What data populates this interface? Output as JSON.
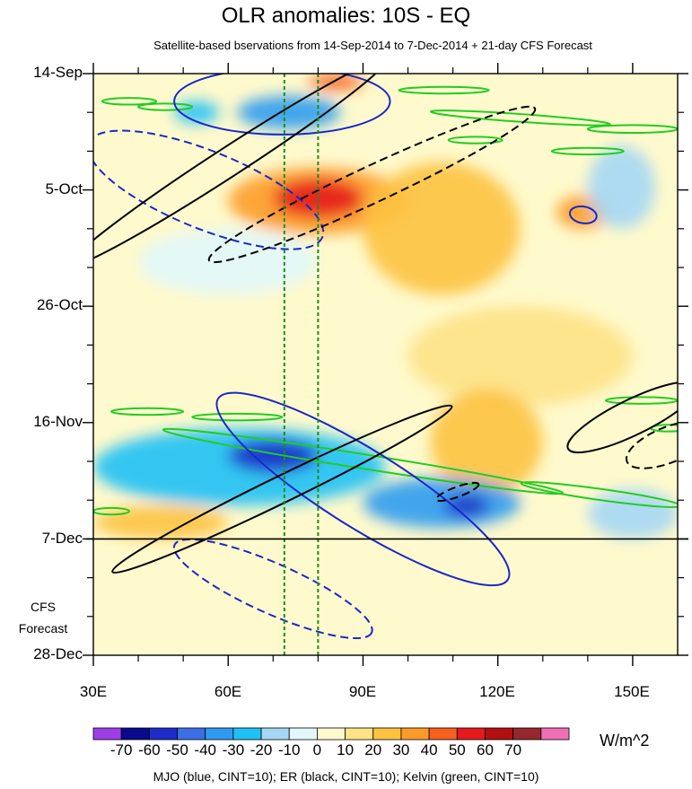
{
  "chart_data": {
    "type": "heatmap",
    "title": "OLR anomalies: 10S - EQ",
    "subtitle": "Satellite-based bservations from 14-Sep-2014 to 7-Dec-2014 + 21-day CFS Forecast",
    "x_ticks": [
      "30E",
      "60E",
      "90E",
      "120E",
      "150E"
    ],
    "x_tick_values": [
      30,
      60,
      90,
      120,
      150
    ],
    "xlim": [
      30,
      160
    ],
    "y_ticks": [
      "14-Sep",
      "5-Oct",
      "26-Oct",
      "16-Nov",
      "7-Dec",
      "28-Dec"
    ],
    "y_tick_days": [
      0,
      21,
      42,
      63,
      84,
      105
    ],
    "ylim_days": [
      0,
      105
    ],
    "observation_end_day": 84,
    "forecast_label": [
      "CFS",
      "Forecast"
    ],
    "colorbar": {
      "labels": [
        "-70",
        "-60",
        "-50",
        "-40",
        "-30",
        "-20",
        "-10",
        "0",
        "10",
        "20",
        "30",
        "40",
        "50",
        "60",
        "70"
      ],
      "colors": [
        "#9e3de6",
        "#0a0a8c",
        "#1e2dc8",
        "#3c6ee6",
        "#2e9bf0",
        "#1fc0f5",
        "#a5d7f5",
        "#e1f7fa",
        "#fffacd",
        "#fde286",
        "#fdc240",
        "#fd9b2a",
        "#f5611e",
        "#e61a1a",
        "#b40f0f",
        "#96282d",
        "#f06eb4"
      ],
      "units": "W/m^2"
    },
    "overlay_note": "MJO (blue, CINT=10); ER (black, CINT=10); Kelvin (green, CINT=10)",
    "overlay_colors": {
      "MJO": "#1a28c8",
      "ER": "#000000",
      "Kelvin": "#22cc22",
      "reference_lines": "#1e8c1e"
    },
    "reference_longitudes": [
      72.5,
      80
    ],
    "anomaly_regions": [
      {
        "lon": [
          62,
          85
        ],
        "day": [
          4,
          10
        ],
        "value": -40
      },
      {
        "lon": [
          48,
          58
        ],
        "day": [
          5,
          9
        ],
        "value": -30
      },
      {
        "lon": [
          60,
          100
        ],
        "day": [
          17,
          29
        ],
        "value": 30
      },
      {
        "lon": [
          70,
          90
        ],
        "day": [
          19,
          26
        ],
        "value": 50
      },
      {
        "lon": [
          78,
          90
        ],
        "day": [
          0,
          3
        ],
        "value": 40
      },
      {
        "lon": [
          90,
          125
        ],
        "day": [
          16,
          40
        ],
        "value": 20
      },
      {
        "lon": [
          133,
          145
        ],
        "day": [
          22,
          28
        ],
        "value": 30
      },
      {
        "lon": [
          140,
          155
        ],
        "day": [
          13,
          28
        ],
        "value": -20
      },
      {
        "lon": [
          40,
          80
        ],
        "day": [
          28,
          40
        ],
        "value": -10
      },
      {
        "lon": [
          100,
          150
        ],
        "day": [
          42,
          60
        ],
        "value": 10
      },
      {
        "lon": [
          105,
          130
        ],
        "day": [
          57,
          76
        ],
        "value": 20
      },
      {
        "lon": [
          30,
          95
        ],
        "day": [
          64,
          78
        ],
        "value": -30
      },
      {
        "lon": [
          60,
          80
        ],
        "day": [
          66,
          72
        ],
        "value": -60
      },
      {
        "lon": [
          90,
          125
        ],
        "day": [
          73,
          82
        ],
        "value": -40
      },
      {
        "lon": [
          108,
          118
        ],
        "day": [
          76,
          80
        ],
        "value": -60
      },
      {
        "lon": [
          30,
          60
        ],
        "day": [
          78,
          84
        ],
        "value": 20
      },
      {
        "lon": [
          140,
          160
        ],
        "day": [
          75,
          84
        ],
        "value": -20
      }
    ],
    "mjo_contours": [
      {
        "lon_center": 72,
        "day_center": 5,
        "lon_radius": 24,
        "day_radius": 6,
        "rotate": 0,
        "dashed": false
      },
      {
        "lon_center": 55,
        "day_center": 21,
        "lon_radius": 28,
        "day_radius": 7,
        "rotate": 22,
        "dashed": true
      },
      {
        "lon_center": 139,
        "day_center": 25.5,
        "lon_radius": 3,
        "day_radius": 1.5,
        "rotate": 10,
        "dashed": false
      },
      {
        "lon_center": 90,
        "day_center": 75,
        "lon_radius": 38,
        "day_radius": 7,
        "rotate": 32,
        "dashed": false
      },
      {
        "lon_center": 70,
        "day_center": 93,
        "lon_radius": 24,
        "day_radius": 4.5,
        "rotate": 24,
        "dashed": true
      }
    ],
    "er_contours": [
      {
        "lon_center": 60,
        "day_center": 16,
        "lon_radius": 42,
        "day_radius": 2.6,
        "rotate": -33,
        "dashed": false
      },
      {
        "lon_center": 92,
        "day_center": 20,
        "lon_radius": 40,
        "day_radius": 3.3,
        "rotate": -25,
        "dashed": true
      },
      {
        "lon_center": 72,
        "day_center": 75,
        "lon_radius": 42,
        "day_radius": 2.4,
        "rotate": -26,
        "dashed": false
      },
      {
        "lon_center": 150,
        "day_center": 62,
        "lon_radius": 16,
        "day_radius": 3.2,
        "rotate": -26,
        "dashed": false
      },
      {
        "lon_center": 158,
        "day_center": 67,
        "lon_radius": 10,
        "day_radius": 3.2,
        "rotate": -22,
        "dashed": true
      },
      {
        "lon_center": 111,
        "day_center": 75.5,
        "lon_radius": 5,
        "day_radius": 0.9,
        "rotate": -20,
        "dashed": true
      }
    ],
    "kelvin_contours": [
      {
        "lon_center": 38,
        "day_center": 5,
        "lon_radius": 6,
        "day_radius": 0.6,
        "rotate": 0
      },
      {
        "lon_center": 46,
        "day_center": 6,
        "lon_radius": 6,
        "day_radius": 0.6,
        "rotate": 0
      },
      {
        "lon_center": 108,
        "day_center": 3,
        "lon_radius": 10,
        "day_radius": 0.6,
        "rotate": 0
      },
      {
        "lon_center": 125,
        "day_center": 8,
        "lon_radius": 20,
        "day_radius": 0.7,
        "rotate": 4
      },
      {
        "lon_center": 150,
        "day_center": 10,
        "lon_radius": 10,
        "day_radius": 0.7,
        "rotate": 0
      },
      {
        "lon_center": 115,
        "day_center": 12,
        "lon_radius": 6,
        "day_radius": 0.6,
        "rotate": 0
      },
      {
        "lon_center": 140,
        "day_center": 14,
        "lon_radius": 8,
        "day_radius": 0.6,
        "rotate": 0
      },
      {
        "lon_center": 42,
        "day_center": 61,
        "lon_radius": 8,
        "day_radius": 0.6,
        "rotate": 0
      },
      {
        "lon_center": 62,
        "day_center": 62,
        "lon_radius": 10,
        "day_radius": 0.6,
        "rotate": 0
      },
      {
        "lon_center": 90,
        "day_center": 70,
        "lon_radius": 45,
        "day_radius": 1.3,
        "rotate": 9
      },
      {
        "lon_center": 143,
        "day_center": 76,
        "lon_radius": 18,
        "day_radius": 1.0,
        "rotate": 8
      },
      {
        "lon_center": 34,
        "day_center": 79,
        "lon_radius": 4,
        "day_radius": 0.6,
        "rotate": 0
      },
      {
        "lon_center": 152,
        "day_center": 59,
        "lon_radius": 8,
        "day_radius": 0.6,
        "rotate": 0
      },
      {
        "lon_center": 158,
        "day_center": 64,
        "lon_radius": 4,
        "day_radius": 0.6,
        "rotate": 0
      }
    ]
  }
}
